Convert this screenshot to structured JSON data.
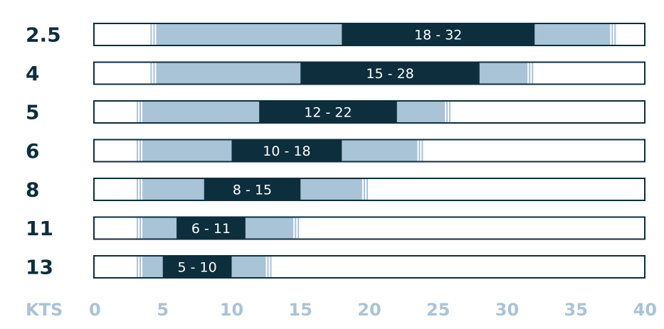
{
  "chart_data": {
    "type": "range-bar",
    "xlabel": "KTS",
    "xlim": [
      0,
      40
    ],
    "xticks": [
      "0",
      "5",
      "10",
      "15",
      "20",
      "25",
      "30",
      "35",
      "40"
    ],
    "colors": {
      "ideal": "#0c2e3d",
      "usable": "#a9c3d7",
      "outline": "#0c2e3d",
      "label": "#0c2e3d",
      "axis": "#a9c3d7",
      "background": "#ffffff"
    },
    "rows": [
      {
        "size": "2.5",
        "usable": [
          4,
          38
        ],
        "ideal": [
          18,
          32
        ],
        "ideal_label": "18 - 32"
      },
      {
        "size": "4",
        "usable": [
          4,
          32
        ],
        "ideal": [
          15,
          28
        ],
        "ideal_label": "15 - 28"
      },
      {
        "size": "5",
        "usable": [
          3,
          26
        ],
        "ideal": [
          12,
          22
        ],
        "ideal_label": "12 - 22"
      },
      {
        "size": "6",
        "usable": [
          3,
          24
        ],
        "ideal": [
          10,
          18
        ],
        "ideal_label": "10 - 18"
      },
      {
        "size": "8",
        "usable": [
          3,
          20
        ],
        "ideal": [
          8,
          15
        ],
        "ideal_label": "8 - 15"
      },
      {
        "size": "11",
        "usable": [
          3,
          15
        ],
        "ideal": [
          6,
          11
        ],
        "ideal_label": "6 - 11"
      },
      {
        "size": "13",
        "usable": [
          3,
          13
        ],
        "ideal": [
          5,
          10
        ],
        "ideal_label": "5 - 10"
      }
    ]
  }
}
